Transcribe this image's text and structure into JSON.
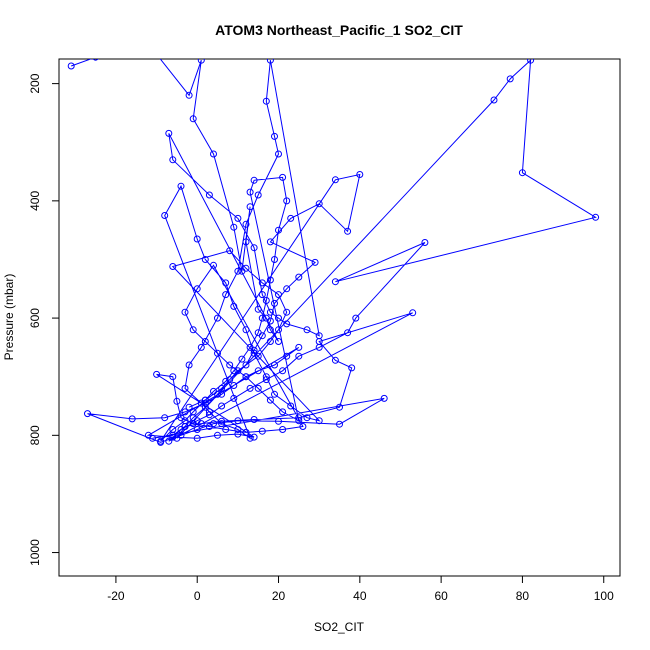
{
  "chart_data": {
    "type": "line",
    "title": "ATOM3 Northeast_Pacific_1 SO2_CIT",
    "xlabel": "SO2_CIT",
    "ylabel": "Pressure (mbar)",
    "xlim": [
      -34,
      104
    ],
    "ylim": [
      1040,
      158
    ],
    "y_reversed": true,
    "grid": false,
    "marker": "open-circle",
    "x_ticks": [
      -20,
      0,
      20,
      40,
      60,
      80,
      100
    ],
    "y_ticks": [
      200,
      400,
      600,
      800,
      1000
    ],
    "series": [
      {
        "values": [
          [
            -31,
            170
          ],
          [
            -25,
            155
          ],
          [
            -10,
            150
          ],
          [
            -2,
            220
          ],
          [
            1,
            160
          ],
          [
            -1,
            260
          ],
          [
            4,
            320
          ],
          [
            9,
            445
          ],
          [
            11,
            520
          ],
          [
            13,
            410
          ],
          [
            12,
            470
          ],
          [
            15,
            585
          ],
          [
            17,
            600
          ],
          [
            18,
            620
          ],
          [
            20,
            640
          ],
          [
            -7,
            285
          ],
          [
            -6,
            330
          ],
          [
            3,
            390
          ],
          [
            10,
            430
          ],
          [
            14,
            480
          ],
          [
            16,
            560
          ],
          [
            18,
            590
          ],
          [
            20,
            600
          ],
          [
            22,
            610
          ],
          [
            27,
            620
          ],
          [
            30,
            630
          ],
          [
            18,
            160
          ],
          [
            17,
            230
          ],
          [
            19,
            290
          ],
          [
            20,
            320
          ],
          [
            15,
            390
          ],
          [
            12,
            440
          ],
          [
            10,
            520
          ],
          [
            7,
            560
          ],
          [
            5,
            600
          ],
          [
            1,
            650
          ],
          [
            -2,
            680
          ],
          [
            -3,
            720
          ],
          [
            1,
            745
          ],
          [
            3,
            760
          ],
          [
            6,
            780
          ],
          [
            10,
            790
          ],
          [
            13,
            805
          ],
          [
            -8,
            425
          ],
          [
            -4,
            375
          ],
          [
            0,
            465
          ],
          [
            2,
            500
          ],
          [
            7,
            540
          ],
          [
            9,
            580
          ],
          [
            12,
            620
          ],
          [
            14,
            660
          ],
          [
            17,
            700
          ],
          [
            19,
            730
          ],
          [
            23,
            750
          ],
          [
            27,
            770
          ],
          [
            30,
            775
          ],
          [
            -6,
            512
          ],
          [
            8,
            485
          ],
          [
            12,
            515
          ],
          [
            16,
            540
          ],
          [
            20,
            560
          ],
          [
            22,
            590
          ],
          [
            20,
            620
          ],
          [
            18,
            640
          ],
          [
            15,
            665
          ],
          [
            10,
            690
          ],
          [
            6,
            720
          ],
          [
            2,
            740
          ],
          [
            -1,
            760
          ],
          [
            -3,
            775
          ],
          [
            -6,
            790
          ],
          [
            -9,
            810
          ],
          [
            34,
            364
          ],
          [
            40,
            355
          ],
          [
            37,
            452
          ],
          [
            30,
            405
          ],
          [
            23,
            430
          ],
          [
            18,
            470
          ],
          [
            29,
            505
          ],
          [
            25,
            530
          ],
          [
            22,
            550
          ],
          [
            19,
            575
          ],
          [
            18,
            605
          ],
          [
            16,
            630
          ],
          [
            14,
            655
          ],
          [
            12,
            680
          ],
          [
            8,
            705
          ],
          [
            5,
            730
          ],
          [
            2,
            752
          ],
          [
            -1,
            770
          ],
          [
            -3,
            785
          ],
          [
            -5,
            805
          ],
          [
            73,
            228
          ],
          [
            77,
            192
          ],
          [
            82,
            160
          ],
          [
            80,
            352
          ],
          [
            98,
            428
          ],
          [
            34,
            538
          ],
          [
            56,
            471
          ],
          [
            39,
            600
          ],
          [
            37,
            625
          ],
          [
            30,
            650
          ],
          [
            25,
            665
          ],
          [
            21,
            690
          ],
          [
            17,
            705
          ],
          [
            13,
            720
          ],
          [
            9,
            737
          ],
          [
            6,
            750
          ],
          [
            3,
            765
          ],
          [
            0,
            775
          ],
          [
            -4,
            790
          ],
          [
            -7,
            810
          ],
          [
            53,
            591
          ],
          [
            30,
            640
          ],
          [
            34,
            672
          ],
          [
            38,
            685
          ],
          [
            35,
            752
          ],
          [
            25,
            770
          ],
          [
            14,
            773
          ],
          [
            6,
            776
          ],
          [
            1,
            780
          ],
          [
            -3,
            785
          ],
          [
            -6,
            800
          ],
          [
            -11,
            805
          ],
          [
            46,
            737
          ],
          [
            35,
            781
          ],
          [
            20,
            776
          ],
          [
            10,
            775
          ],
          [
            4,
            780
          ],
          [
            0,
            790
          ],
          [
            -4,
            800
          ],
          [
            -9,
            812
          ],
          [
            -27,
            763
          ],
          [
            -16,
            772
          ],
          [
            -8,
            770
          ],
          [
            -3,
            760
          ],
          [
            2,
            745
          ],
          [
            6,
            730
          ],
          [
            9,
            715
          ],
          [
            12,
            700
          ],
          [
            15,
            690
          ],
          [
            19,
            680
          ],
          [
            22,
            665
          ],
          [
            25,
            650
          ],
          [
            -12,
            800
          ],
          [
            -6,
            803
          ],
          [
            0,
            805
          ],
          [
            5,
            800
          ],
          [
            10,
            798
          ],
          [
            14,
            803
          ],
          [
            -10,
            696
          ],
          [
            -6,
            700
          ],
          [
            -5,
            742
          ],
          [
            -4,
            770
          ],
          [
            -1,
            780
          ],
          [
            3,
            785
          ],
          [
            7,
            790
          ],
          [
            12,
            795
          ],
          [
            16,
            793
          ],
          [
            21,
            790
          ],
          [
            26,
            785
          ],
          [
            4,
            510
          ],
          [
            0,
            550
          ],
          [
            -3,
            590
          ],
          [
            -1,
            620
          ],
          [
            2,
            640
          ],
          [
            5,
            660
          ],
          [
            8,
            680
          ],
          [
            12,
            700
          ],
          [
            15,
            720
          ],
          [
            18,
            740
          ],
          [
            21,
            760
          ],
          [
            25,
            775
          ],
          [
            13,
            385
          ],
          [
            14,
            365
          ],
          [
            21,
            360
          ],
          [
            22,
            400
          ],
          [
            20,
            450
          ],
          [
            19,
            500
          ],
          [
            18,
            535
          ],
          [
            17,
            570
          ],
          [
            16,
            600
          ],
          [
            15,
            625
          ],
          [
            13,
            650
          ],
          [
            11,
            670
          ],
          [
            9,
            690
          ],
          [
            7,
            708
          ],
          [
            4,
            725
          ],
          [
            2,
            740
          ],
          [
            -2,
            752
          ]
        ]
      }
    ]
  }
}
